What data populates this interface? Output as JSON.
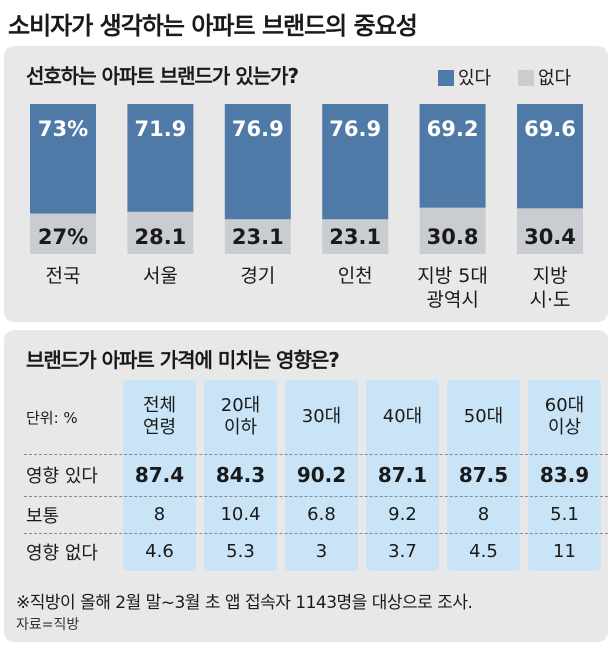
{
  "title": "소비자가 생각하는 아파트 브랜드의 중요성",
  "colors": {
    "have": "#4f79a6",
    "none": "#c9ccd0",
    "table_col": "#c8e4f6"
  },
  "chart_data": [
    {
      "type": "bar",
      "stacked": true,
      "title": "선호하는 아파트 브랜드가 있는가?",
      "unit": "%",
      "legend": "top-right",
      "ylim": [
        0,
        100
      ],
      "categories": [
        "전국",
        "서울",
        "경기",
        "인천",
        "지방 5대\n광역시",
        "지방\n시·도"
      ],
      "series": [
        {
          "name": "있다",
          "values": [
            73,
            71.9,
            76.9,
            76.9,
            69.2,
            69.6
          ],
          "labels": [
            "73%",
            "71.9",
            "76.9",
            "76.9",
            "69.2",
            "69.6"
          ]
        },
        {
          "name": "없다",
          "values": [
            27,
            28.1,
            23.1,
            23.1,
            30.8,
            30.4
          ],
          "labels": [
            "27%",
            "28.1",
            "23.1",
            "23.1",
            "30.8",
            "30.4"
          ]
        }
      ]
    },
    {
      "type": "table",
      "title": "브랜드가 아파트 가격에 미치는 영향은?",
      "unit_label": "단위: %",
      "columns": [
        "전체\n연령",
        "20대\n이하",
        "30대",
        "40대",
        "50대",
        "60대\n이상"
      ],
      "rows": [
        {
          "label": "영향 있다",
          "values": [
            "87.4",
            "84.3",
            "90.2",
            "87.1",
            "87.5",
            "83.9"
          ]
        },
        {
          "label": "보통",
          "values": [
            "8",
            "10.4",
            "6.8",
            "9.2",
            "8",
            "5.1"
          ]
        },
        {
          "label": "영향 없다",
          "values": [
            "4.6",
            "5.3",
            "3",
            "3.7",
            "4.5",
            "11"
          ]
        }
      ]
    }
  ],
  "note": "※직방이 올해 2월 말~3월 초 앱 접속자 1143명을 대상으로 조사.",
  "source": "자료=직방"
}
